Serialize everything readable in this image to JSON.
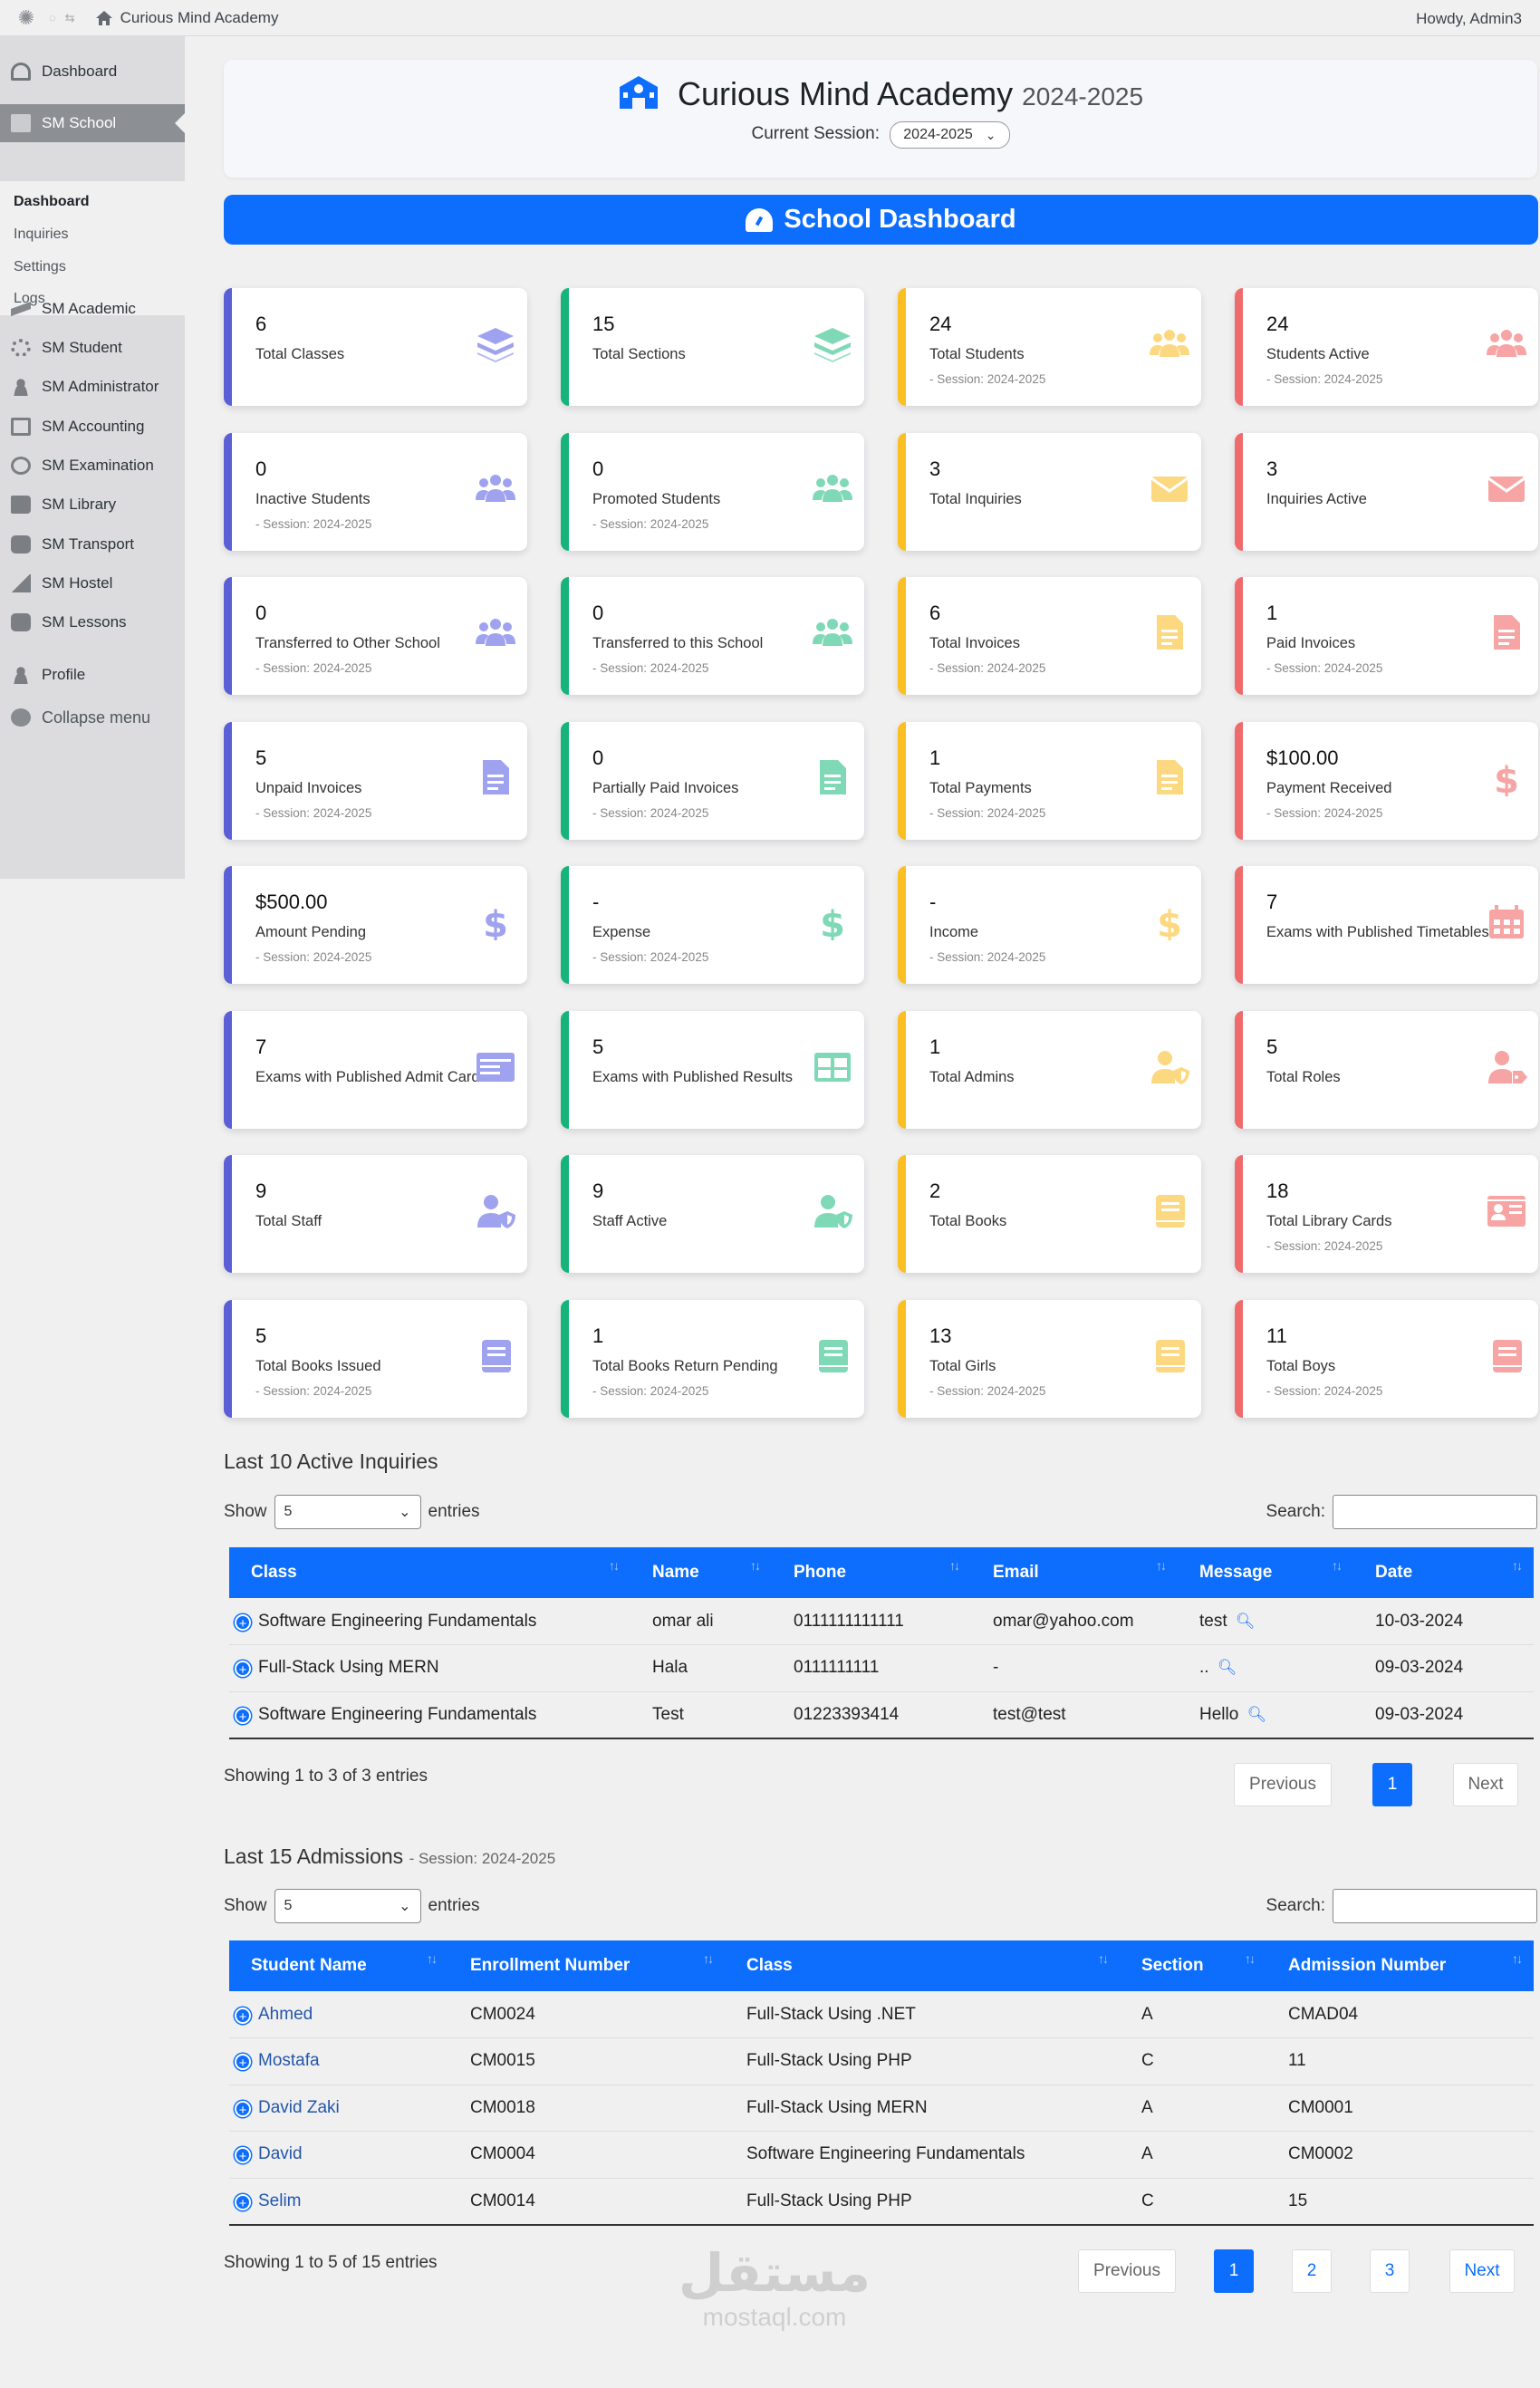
{
  "adminbar": {
    "site_name": "Curious Mind Academy",
    "howdy": "Howdy, Admin3"
  },
  "sidebar": {
    "items": [
      {
        "label": "Dashboard",
        "icon": "gauge-icon"
      },
      {
        "label": "SM School",
        "icon": "building-icon"
      },
      {
        "label": "SM Academic",
        "icon": "graduation-cap-icon"
      },
      {
        "label": "SM Student",
        "icon": "gear-icon"
      },
      {
        "label": "SM Administrator",
        "icon": "user-icon"
      },
      {
        "label": "SM Accounting",
        "icon": "document-icon"
      },
      {
        "label": "SM Examination",
        "icon": "clock-icon"
      },
      {
        "label": "SM Library",
        "icon": "book-icon"
      },
      {
        "label": "SM Transport",
        "icon": "bus-icon"
      },
      {
        "label": "SM Hostel",
        "icon": "house-icon"
      },
      {
        "label": "SM Lessons",
        "icon": "lessons-icon"
      },
      {
        "label": "Profile",
        "icon": "user-icon"
      },
      {
        "label": "Collapse menu",
        "icon": "collapse-icon"
      }
    ],
    "submenu": [
      "Dashboard",
      "Inquiries",
      "Settings",
      "Logs"
    ]
  },
  "header": {
    "title": "Curious Mind Academy",
    "year": "2024-2025",
    "session_label": "Current Session:",
    "session_value": "2024-2025"
  },
  "banner": {
    "title": "School Dashboard"
  },
  "colors": {
    "blue": "#5b5fd6",
    "green": "#16b47a",
    "yellow": "#fbbf24",
    "red": "#ef6b6b",
    "primary": "#0d6efd"
  },
  "cards": [
    {
      "num": "6",
      "label": "Total Classes",
      "session": "",
      "icon": "layers-icon"
    },
    {
      "num": "15",
      "label": "Total Sections",
      "session": "",
      "icon": "layers-icon"
    },
    {
      "num": "24",
      "label": "Total Students",
      "session": "- Session: 2024-2025",
      "icon": "users-icon"
    },
    {
      "num": "24",
      "label": "Students Active",
      "session": "- Session: 2024-2025",
      "icon": "users-icon"
    },
    {
      "num": "0",
      "label": "Inactive Students",
      "session": "- Session: 2024-2025",
      "icon": "users-icon"
    },
    {
      "num": "0",
      "label": "Promoted Students",
      "session": "- Session: 2024-2025",
      "icon": "users-icon"
    },
    {
      "num": "3",
      "label": "Total Inquiries",
      "session": "",
      "icon": "envelope-icon"
    },
    {
      "num": "3",
      "label": "Inquiries Active",
      "session": "",
      "icon": "envelope-icon"
    },
    {
      "num": "0",
      "label": "Transferred to Other School",
      "session": "- Session: 2024-2025",
      "icon": "users-icon"
    },
    {
      "num": "0",
      "label": "Transferred to this School",
      "session": "- Session: 2024-2025",
      "icon": "users-icon"
    },
    {
      "num": "6",
      "label": "Total Invoices",
      "session": "- Session: 2024-2025",
      "icon": "invoice-icon"
    },
    {
      "num": "1",
      "label": "Paid Invoices",
      "session": "- Session: 2024-2025",
      "icon": "invoice-icon"
    },
    {
      "num": "5",
      "label": "Unpaid Invoices",
      "session": "- Session: 2024-2025",
      "icon": "invoice-icon"
    },
    {
      "num": "0",
      "label": "Partially Paid Invoices",
      "session": "- Session: 2024-2025",
      "icon": "invoice-icon"
    },
    {
      "num": "1",
      "label": "Total Payments",
      "session": "- Session: 2024-2025",
      "icon": "invoice-icon"
    },
    {
      "num": "$100.00",
      "label": "Payment Received",
      "session": "- Session: 2024-2025",
      "icon": "dollar-icon"
    },
    {
      "num": "$500.00",
      "label": "Amount Pending",
      "session": "- Session: 2024-2025",
      "icon": "dollar-icon"
    },
    {
      "num": "-",
      "label": "Expense",
      "session": "- Session: 2024-2025",
      "icon": "dollar-icon"
    },
    {
      "num": "-",
      "label": "Income",
      "session": "- Session: 2024-2025",
      "icon": "dollar-icon"
    },
    {
      "num": "7",
      "label": "Exams with Published Timetables",
      "session": "",
      "icon": "calendar-icon"
    },
    {
      "num": "7",
      "label": "Exams with Published Admit Cards",
      "session": "",
      "icon": "admit-card-icon"
    },
    {
      "num": "5",
      "label": "Exams with Published Results",
      "session": "",
      "icon": "table-icon"
    },
    {
      "num": "1",
      "label": "Total Admins",
      "session": "",
      "icon": "user-shield-icon"
    },
    {
      "num": "5",
      "label": "Total Roles",
      "session": "",
      "icon": "user-tag-icon"
    },
    {
      "num": "9",
      "label": "Total Staff",
      "session": "",
      "icon": "user-shield-icon"
    },
    {
      "num": "9",
      "label": "Staff Active",
      "session": "",
      "icon": "user-shield-icon"
    },
    {
      "num": "2",
      "label": "Total Books",
      "session": "",
      "icon": "book-icon"
    },
    {
      "num": "18",
      "label": "Total Library Cards",
      "session": "- Session: 2024-2025",
      "icon": "id-card-icon"
    },
    {
      "num": "5",
      "label": "Total Books Issued",
      "session": "- Session: 2024-2025",
      "icon": "book-icon"
    },
    {
      "num": "1",
      "label": "Total Books Return Pending",
      "session": "- Session: 2024-2025",
      "icon": "book-icon"
    },
    {
      "num": "13",
      "label": "Total Girls",
      "session": "- Session: 2024-2025",
      "icon": "book-icon"
    },
    {
      "num": "11",
      "label": "Total Boys",
      "session": "- Session: 2024-2025",
      "icon": "book-icon"
    }
  ],
  "inquiries": {
    "title": "Last 10 Active Inquiries",
    "show_label": "Show",
    "entries_label": "entries",
    "page_size": "5",
    "search_label": "Search:",
    "columns": [
      "Class",
      "Name",
      "Phone",
      "Email",
      "Message",
      "Date"
    ],
    "rows": [
      [
        "Software Engineering Fundamentals",
        "omar ali",
        "0111111111111",
        "omar@yahoo.com",
        "test",
        "10-03-2024"
      ],
      [
        "Full-Stack Using MERN",
        "Hala",
        "0111111111",
        "-",
        "..",
        "09-03-2024"
      ],
      [
        "Software Engineering Fundamentals",
        "Test",
        "01223393414",
        "test@test",
        "Hello",
        "09-03-2024"
      ]
    ],
    "showing": "Showing 1 to 3 of 3 entries",
    "pager": [
      "Previous",
      "1",
      "Next"
    ]
  },
  "admissions": {
    "title": "Last 15 Admissions",
    "subtitle": "- Session: 2024-2025",
    "show_label": "Show",
    "entries_label": "entries",
    "page_size": "5",
    "search_label": "Search:",
    "columns": [
      "Student Name",
      "Enrollment Number",
      "Class",
      "Section",
      "Admission Number"
    ],
    "rows": [
      [
        "Ahmed",
        "CM0024",
        "Full-Stack Using .NET",
        "A",
        "CMAD04"
      ],
      [
        "Mostafa",
        "CM0015",
        "Full-Stack Using PHP",
        "C",
        "11"
      ],
      [
        "David Zaki",
        "CM0018",
        "Full-Stack Using MERN",
        "A",
        "CM0001"
      ],
      [
        "David",
        "CM0004",
        "Software Engineering Fundamentals",
        "A",
        "CM0002"
      ],
      [
        "Selim",
        "CM0014",
        "Full-Stack Using PHP",
        "C",
        "15"
      ]
    ],
    "showing": "Showing 1 to 5 of 15 entries",
    "pager": [
      "Previous",
      "1",
      "2",
      "3",
      "Next"
    ]
  },
  "watermark": {
    "arabic": "مستقل",
    "latin": "mostaql.com"
  }
}
